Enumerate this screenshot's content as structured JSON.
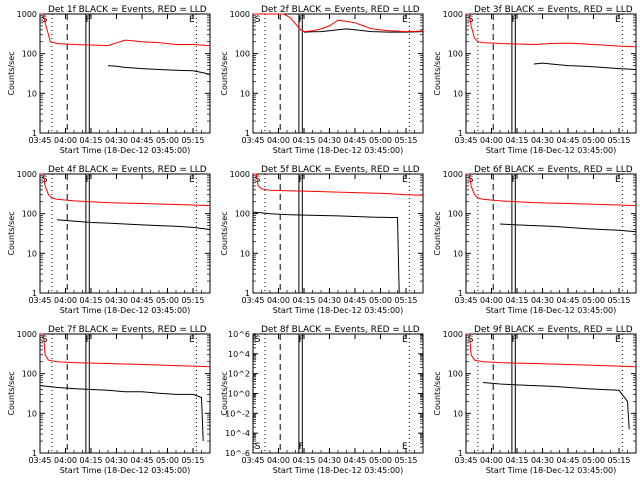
{
  "figure": {
    "time_ticks": [
      "03:45",
      "04:00",
      "04:15",
      "04:30",
      "04:45",
      "05:00",
      "05:15"
    ],
    "xlabel": "Start Time (18-Dec-12 03:45:00)",
    "ylabel": "Counts/sec",
    "colors": {
      "events": "#000000",
      "lld": "#ff0000"
    },
    "markers": {
      "start": "S",
      "flare": "F",
      "end": "E"
    }
  },
  "chart_data": [
    {
      "type": "line",
      "title": "Det 1f BLACK = Events, RED = LLD",
      "yscale": "log",
      "ylim": [
        1,
        1000
      ],
      "yticks": [
        "1",
        "10",
        "100",
        "1000"
      ],
      "xlim": [
        0,
        100
      ],
      "grid": false,
      "series": [
        {
          "name": "Events",
          "x": [
            40,
            45,
            50,
            60,
            70,
            80,
            90,
            96,
            100
          ],
          "y": [
            50,
            48,
            45,
            42,
            40,
            38,
            37,
            33,
            30
          ]
        },
        {
          "name": "LLD",
          "x": [
            0,
            2,
            3,
            5,
            6,
            10,
            20,
            30,
            40,
            50,
            55,
            60,
            70,
            80,
            90,
            100
          ],
          "y": [
            1000,
            1000,
            600,
            300,
            200,
            180,
            170,
            165,
            160,
            220,
            210,
            200,
            190,
            170,
            170,
            160
          ]
        }
      ]
    },
    {
      "type": "line",
      "title": "Det 2f BLACK = Events, RED = LLD",
      "yscale": "log",
      "ylim": [
        1,
        1000
      ],
      "yticks": [
        "1",
        "10",
        "100",
        "1000"
      ],
      "xlim": [
        0,
        100
      ],
      "grid": false,
      "series": [
        {
          "name": "Events",
          "x": [
            30,
            35,
            40,
            45,
            50,
            55,
            60,
            65,
            70,
            80,
            90,
            100
          ],
          "y": [
            350,
            355,
            360,
            380,
            400,
            420,
            400,
            380,
            360,
            350,
            350,
            360
          ]
        },
        {
          "name": "LLD",
          "x": [
            0,
            10,
            18,
            22,
            28,
            30,
            35,
            40,
            45,
            50,
            55,
            60,
            65,
            70,
            80,
            90,
            100
          ],
          "y": [
            1000,
            1000,
            1000,
            800,
            400,
            360,
            380,
            420,
            500,
            700,
            650,
            600,
            500,
            420,
            380,
            360,
            370
          ]
        }
      ]
    },
    {
      "type": "line",
      "title": "Det 3f BLACK = Events, RED = LLD",
      "yscale": "log",
      "ylim": [
        1,
        1000
      ],
      "yticks": [
        "1",
        "10",
        "100",
        "1000"
      ],
      "xlim": [
        0,
        100
      ],
      "grid": false,
      "series": [
        {
          "name": "Events",
          "x": [
            40,
            45,
            50,
            60,
            70,
            80,
            90,
            100
          ],
          "y": [
            55,
            58,
            55,
            50,
            48,
            45,
            42,
            40
          ]
        },
        {
          "name": "LLD",
          "x": [
            0,
            2,
            3,
            5,
            7,
            10,
            20,
            30,
            40,
            50,
            60,
            70,
            80,
            90,
            100
          ],
          "y": [
            1000,
            1000,
            500,
            250,
            200,
            190,
            180,
            175,
            170,
            180,
            185,
            175,
            165,
            155,
            150
          ]
        }
      ]
    },
    {
      "type": "line",
      "title": "Det 4f BLACK = Events, RED = LLD",
      "yscale": "log",
      "ylim": [
        1,
        1000
      ],
      "yticks": [
        "1",
        "10",
        "100",
        "1000"
      ],
      "xlim": [
        0,
        100
      ],
      "grid": false,
      "series": [
        {
          "name": "Events",
          "x": [
            10,
            20,
            30,
            40,
            50,
            60,
            70,
            80,
            90,
            100
          ],
          "y": [
            70,
            65,
            60,
            58,
            55,
            52,
            50,
            48,
            45,
            40
          ]
        },
        {
          "name": "LLD",
          "x": [
            0,
            2,
            3,
            5,
            7,
            10,
            20,
            30,
            40,
            50,
            60,
            70,
            80,
            90,
            100
          ],
          "y": [
            1000,
            1000,
            500,
            300,
            250,
            230,
            210,
            200,
            190,
            185,
            180,
            175,
            170,
            165,
            160
          ]
        }
      ]
    },
    {
      "type": "line",
      "title": "Det 5f BLACK = Events, RED = LLD",
      "yscale": "log",
      "ylim": [
        1,
        1000
      ],
      "yticks": [
        "1",
        "10",
        "100",
        "1000"
      ],
      "xlim": [
        0,
        100
      ],
      "grid": false,
      "series": [
        {
          "name": "Events",
          "x": [
            0,
            10,
            20,
            30,
            40,
            50,
            60,
            70,
            80,
            85,
            86
          ],
          "y": [
            110,
            100,
            95,
            92,
            90,
            88,
            85,
            82,
            80,
            80,
            1
          ]
        },
        {
          "name": "LLD",
          "x": [
            0,
            2,
            3,
            5,
            8,
            10,
            20,
            30,
            40,
            50,
            60,
            70,
            80,
            90,
            100
          ],
          "y": [
            1000,
            1000,
            500,
            420,
            400,
            390,
            380,
            370,
            360,
            350,
            340,
            330,
            320,
            300,
            290
          ]
        }
      ]
    },
    {
      "type": "line",
      "title": "Det 6f BLACK = Events, RED = LLD",
      "yscale": "log",
      "ylim": [
        1,
        1000
      ],
      "yticks": [
        "1",
        "10",
        "100",
        "1000"
      ],
      "xlim": [
        0,
        100
      ],
      "grid": false,
      "series": [
        {
          "name": "Events",
          "x": [
            20,
            30,
            40,
            50,
            60,
            70,
            80,
            90,
            100
          ],
          "y": [
            55,
            52,
            50,
            48,
            45,
            42,
            40,
            38,
            35
          ]
        },
        {
          "name": "LLD",
          "x": [
            0,
            2,
            3,
            5,
            7,
            10,
            20,
            30,
            40,
            50,
            60,
            70,
            80,
            90,
            100
          ],
          "y": [
            1000,
            1000,
            500,
            300,
            250,
            230,
            210,
            200,
            190,
            185,
            180,
            175,
            170,
            165,
            160
          ]
        }
      ]
    },
    {
      "type": "line",
      "title": "Det 7f BLACK = Events, RED = LLD",
      "yscale": "log",
      "ylim": [
        1,
        1000
      ],
      "yticks": [
        "1",
        "10",
        "100",
        "1000"
      ],
      "xlim": [
        0,
        100
      ],
      "grid": false,
      "series": [
        {
          "name": "Events",
          "x": [
            0,
            10,
            20,
            30,
            40,
            50,
            60,
            70,
            80,
            90,
            95,
            96
          ],
          "y": [
            50,
            45,
            42,
            40,
            38,
            35,
            35,
            32,
            30,
            30,
            25,
            2
          ]
        },
        {
          "name": "LLD",
          "x": [
            0,
            2,
            3,
            5,
            10,
            20,
            30,
            40,
            50,
            60,
            70,
            80,
            90,
            100
          ],
          "y": [
            1000,
            1000,
            300,
            220,
            200,
            190,
            185,
            180,
            175,
            170,
            165,
            160,
            155,
            150
          ]
        }
      ]
    },
    {
      "type": "line",
      "title": "Det 8f BLACK = Events, RED = LLD",
      "yscale": "log",
      "ylim": [
        1e-06,
        1000000.0
      ],
      "yticks": [
        "10^-6",
        "10^-4",
        "10^-2",
        "10^0",
        "10^2",
        "10^4",
        "10^6"
      ],
      "xlim": [
        0,
        100
      ],
      "grid": false,
      "series": []
    },
    {
      "type": "line",
      "title": "Det 9f BLACK = Events, RED = LLD",
      "yscale": "log",
      "ylim": [
        1,
        1000
      ],
      "yticks": [
        "1",
        "10",
        "100",
        "1000"
      ],
      "xlim": [
        0,
        100
      ],
      "grid": false,
      "series": [
        {
          "name": "Events",
          "x": [
            10,
            20,
            30,
            40,
            50,
            60,
            70,
            80,
            90,
            95,
            96
          ],
          "y": [
            60,
            55,
            52,
            50,
            48,
            45,
            42,
            40,
            38,
            20,
            4
          ]
        },
        {
          "name": "LLD",
          "x": [
            0,
            2,
            3,
            5,
            10,
            20,
            30,
            40,
            50,
            60,
            70,
            80,
            90,
            100
          ],
          "y": [
            1000,
            1000,
            300,
            220,
            200,
            190,
            185,
            180,
            175,
            170,
            165,
            160,
            155,
            150
          ]
        }
      ]
    }
  ]
}
